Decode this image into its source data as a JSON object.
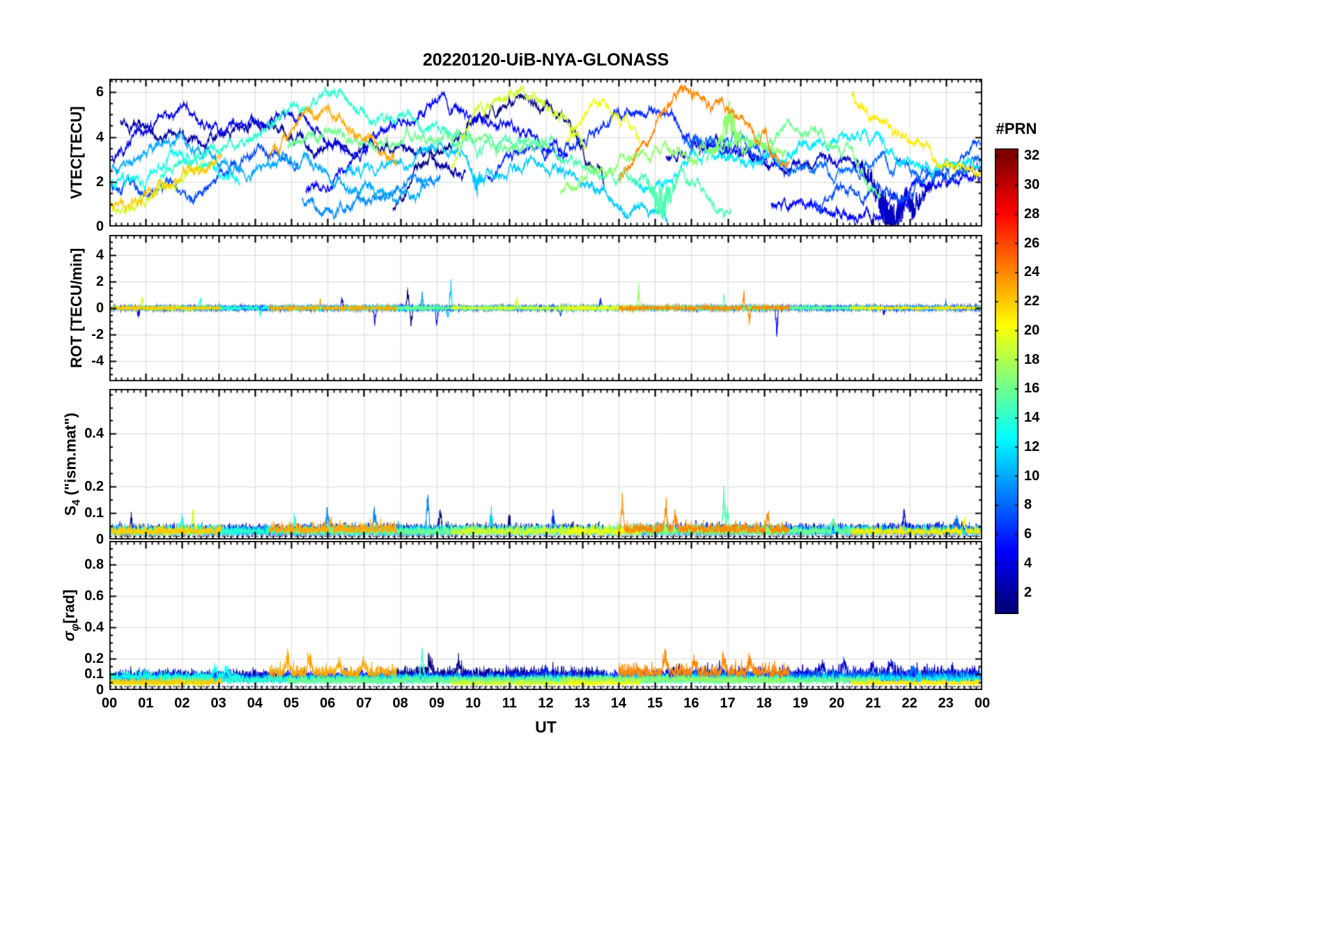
{
  "title": "20220120-UiB-NYA-GLONASS",
  "x_axis": {
    "label": "UT",
    "lim": [
      0,
      24
    ],
    "ticks": [
      "00",
      "01",
      "02",
      "03",
      "04",
      "05",
      "06",
      "07",
      "08",
      "09",
      "10",
      "11",
      "12",
      "13",
      "14",
      "15",
      "16",
      "17",
      "18",
      "19",
      "20",
      "21",
      "22",
      "23",
      "00"
    ]
  },
  "colorbar": {
    "title": "#PRN",
    "colormap": "jet",
    "lim": [
      1,
      32
    ],
    "ticks": [
      2,
      4,
      6,
      8,
      10,
      12,
      14,
      16,
      18,
      20,
      22,
      24,
      26,
      28,
      30,
      32
    ]
  },
  "chart_data": {
    "type": "line",
    "panels": [
      {
        "id": "vtec",
        "ylabel": [
          {
            "t": "VTEC[TECU]"
          }
        ],
        "ylim": [
          0,
          6.6
        ],
        "yticks": [
          0,
          2,
          4,
          6
        ],
        "minor": 0.5,
        "grid": true
      },
      {
        "id": "rot",
        "ylabel": [
          {
            "t": "ROT [TECU/min]"
          }
        ],
        "ylim": [
          -5.5,
          5.5
        ],
        "yticks": [
          -4,
          -2,
          0,
          2,
          4
        ],
        "minor": 0.5,
        "grid": true
      },
      {
        "id": "s4",
        "ylabel": [
          {
            "t": "S"
          },
          {
            "t": "4",
            "sub": true
          },
          {
            "t": " (\"ism.mat\")"
          }
        ],
        "ylim": [
          0,
          0.57
        ],
        "yticks": [
          0,
          0.1,
          0.2,
          0.4
        ],
        "minor": 0.05,
        "grid": true,
        "baseline": 0.012
      },
      {
        "id": "sigma",
        "ylabel": [
          {
            "t": "σ",
            "italic": true
          },
          {
            "t": "φ",
            "sub": true,
            "italic": true
          },
          {
            "t": "[rad]"
          }
        ],
        "ylim": [
          0,
          0.95
        ],
        "yticks": [
          0,
          0.1,
          0.2,
          0.4,
          0.6,
          0.8
        ],
        "minor": 0.05,
        "grid": true,
        "baseline": 0.022
      }
    ],
    "passes": [
      {
        "prn": 2,
        "t0": 0.3,
        "t1": 9.8,
        "vtec": [
          4.6,
          4.0,
          2.8
        ],
        "rot": 0.1,
        "s4": 0.03,
        "sg": 0.08
      },
      {
        "prn": 1,
        "t0": 7.8,
        "t1": 13.6,
        "vtec": [
          0.6,
          5.6,
          2.2
        ],
        "rot": 0.11,
        "s4": 0.032,
        "sg": 0.095
      },
      {
        "prn": 3,
        "t0": 15.3,
        "t1": 23.95,
        "vtec": [
          3.2,
          2.8,
          2.4
        ],
        "rot": 0.1,
        "s4": 0.032,
        "sg": 0.095
      },
      {
        "prn": 4,
        "t0": 0.05,
        "t1": 6.6,
        "vtec": [
          3.4,
          5.0,
          3.6
        ],
        "rot": 0.1,
        "s4": 0.03,
        "sg": 0.075
      },
      {
        "prn": 5,
        "t0": 5.4,
        "t1": 12.6,
        "vtec": [
          1.4,
          5.0,
          3.0
        ],
        "rot": 0.1,
        "s4": 0.03,
        "sg": 0.075
      },
      {
        "prn": 5,
        "t0": 18.2,
        "t1": 23.95,
        "vtec": [
          0.6,
          1.2,
          2.8
        ],
        "rot": 0.1,
        "s4": 0.03,
        "sg": 0.075
      },
      {
        "prn": 6,
        "t0": 10.4,
        "t1": 18.1,
        "vtec": [
          2.2,
          4.6,
          2.6
        ],
        "rot": 0.1,
        "s4": 0.03,
        "sg": 0.08
      },
      {
        "prn": 7,
        "t0": 0.05,
        "t1": 5.2,
        "vtec": [
          1.4,
          2.2,
          3.3
        ],
        "rot": 0.09,
        "s4": 0.028,
        "sg": 0.07
      },
      {
        "prn": 7,
        "t0": 19.4,
        "t1": 23.95,
        "vtec": [
          1.0,
          1.6,
          3.9
        ],
        "rot": 0.09,
        "s4": 0.028,
        "sg": 0.07
      },
      {
        "prn": 8,
        "t0": 15.8,
        "t1": 23.95,
        "vtec": [
          3.9,
          2.6,
          3.3
        ],
        "rot": 0.1,
        "s4": 0.03,
        "sg": 0.08
      },
      {
        "prn": 9,
        "t0": 5.3,
        "t1": 9.1,
        "vtec": [
          0.9,
          1.3,
          2.2
        ],
        "rot": 0.09,
        "s4": 0.03,
        "sg": 0.07
      },
      {
        "prn": 10,
        "t0": 0.05,
        "t1": 8.8,
        "vtec": [
          2.6,
          2.9,
          1.2
        ],
        "rot": 0.09,
        "s4": 0.028,
        "sg": 0.065
      },
      {
        "prn": 11,
        "t0": 6.5,
        "t1": 15.35,
        "vtec": [
          2.3,
          3.1,
          0.3
        ],
        "rot": 0.09,
        "s4": 0.028,
        "sg": 0.065
      },
      {
        "prn": 12,
        "t0": 14.4,
        "t1": 23.95,
        "vtec": [
          2.4,
          3.4,
          2.6
        ],
        "rot": 0.09,
        "s4": 0.028,
        "sg": 0.065
      },
      {
        "prn": 13,
        "t0": 0.05,
        "t1": 3.6,
        "vtec": [
          2.1,
          2.8,
          2.4
        ],
        "rot": 0.09,
        "s4": 0.028,
        "sg": 0.075
      },
      {
        "prn": 14,
        "t0": 1.4,
        "t1": 9.6,
        "vtec": [
          1.8,
          5.4,
          3.6
        ],
        "rot": 0.1,
        "s4": 0.028,
        "sg": 0.06
      },
      {
        "prn": 15,
        "t0": 9.4,
        "t1": 17.1,
        "vtec": [
          3.9,
          3.0,
          0.5
        ],
        "rot": 0.1,
        "s4": 0.03,
        "sg": 0.06
      },
      {
        "prn": 16,
        "t0": 4.9,
        "t1": 12.1,
        "vtec": [
          3.3,
          4.2,
          3.7
        ],
        "rot": 0.1,
        "s4": 0.028,
        "sg": 0.055
      },
      {
        "prn": 16,
        "t0": 16.4,
        "t1": 21.2,
        "vtec": [
          2.6,
          4.5,
          2.2
        ],
        "rot": 0.1,
        "s4": 0.028,
        "sg": 0.055
      },
      {
        "prn": 17,
        "t0": 12.4,
        "t1": 18.6,
        "vtec": [
          2.0,
          3.2,
          3.0
        ],
        "rot": 0.11,
        "s4": 0.03,
        "sg": 0.06
      },
      {
        "prn": 19,
        "t0": 9.4,
        "t1": 13.1,
        "vtec": [
          2.6,
          6.1,
          3.4
        ],
        "rot": 0.1,
        "s4": 0.027,
        "sg": 0.04
      },
      {
        "prn": 19,
        "t0": 0.05,
        "t1": 2.6,
        "vtec": [
          1.1,
          1.5,
          2.4
        ],
        "rot": 0.1,
        "s4": 0.027,
        "sg": 0.04
      },
      {
        "prn": 20,
        "t0": 12.6,
        "t1": 14.6,
        "vtec": [
          3.4,
          5.3,
          3.8
        ],
        "rot": 0.1,
        "s4": 0.027,
        "sg": 0.04
      },
      {
        "prn": 21,
        "t0": 20.4,
        "t1": 23.95,
        "vtec": [
          6.4,
          3.4,
          2.3
        ],
        "rot": 0.1,
        "s4": 0.027,
        "sg": 0.042
      },
      {
        "prn": 22,
        "t0": 0.05,
        "t1": 3.1,
        "vtec": [
          1.0,
          1.8,
          3.2
        ],
        "rot": 0.1,
        "s4": 0.028,
        "sg": 0.045
      },
      {
        "prn": 23,
        "t0": 4.4,
        "t1": 7.9,
        "vtec": [
          3.4,
          4.8,
          3.3
        ],
        "rot": 0.13,
        "s4": 0.035,
        "sg": 0.105
      },
      {
        "prn": 24,
        "t0": 14.0,
        "t1": 18.7,
        "vtec": [
          2.4,
          6.0,
          2.9
        ],
        "rot": 0.13,
        "s4": 0.035,
        "sg": 0.105
      }
    ],
    "events": {
      "vtec": [
        {
          "prn": 3,
          "t": 21.5,
          "a": -2.4,
          "w": 1.2
        },
        {
          "prn": 15,
          "t": 15.2,
          "a": -2.2,
          "w": 0.5
        },
        {
          "prn": 17,
          "t": 17.05,
          "a": 2.0,
          "w": 0.45
        },
        {
          "prn": 11,
          "t": 10.1,
          "a": -1.2,
          "w": 0.3
        }
      ],
      "rot": [
        {
          "prn": 19,
          "t": 0.9,
          "a": 1.0
        },
        {
          "prn": 4,
          "t": 0.8,
          "a": -0.9
        },
        {
          "prn": 13,
          "t": 2.5,
          "a": 0.8
        },
        {
          "prn": 14,
          "t": 4.15,
          "a": -0.9
        },
        {
          "prn": 23,
          "t": 5.8,
          "a": 0.8
        },
        {
          "prn": 4,
          "t": 6.4,
          "a": 1.0
        },
        {
          "prn": 5,
          "t": 7.3,
          "a": -1.3
        },
        {
          "prn": 1,
          "t": 8.2,
          "a": 1.9
        },
        {
          "prn": 1,
          "t": 8.3,
          "a": -1.6
        },
        {
          "prn": 10,
          "t": 8.6,
          "a": 1.5
        },
        {
          "prn": 5,
          "t": 9.0,
          "a": -1.5
        },
        {
          "prn": 11,
          "t": 9.3,
          "a": -1.2
        },
        {
          "prn": 11,
          "t": 9.38,
          "a": 2.6
        },
        {
          "prn": 19,
          "t": 11.2,
          "a": 0.9
        },
        {
          "prn": 6,
          "t": 12.4,
          "a": -0.8
        },
        {
          "prn": 6,
          "t": 13.5,
          "a": 0.9
        },
        {
          "prn": 17,
          "t": 14.55,
          "a": 2.0
        },
        {
          "prn": 24,
          "t": 17.45,
          "a": 1.5
        },
        {
          "prn": 24,
          "t": 17.6,
          "a": -1.6
        },
        {
          "prn": 15,
          "t": 16.9,
          "a": 1.2
        },
        {
          "prn": 5,
          "t": 18.35,
          "a": -2.4
        },
        {
          "prn": 3,
          "t": 21.3,
          "a": -0.8
        },
        {
          "prn": 8,
          "t": 23.0,
          "a": 0.7
        }
      ],
      "s4": [
        {
          "prn": 2,
          "t": 0.6,
          "a": 0.06
        },
        {
          "prn": 19,
          "t": 2.3,
          "a": 0.09
        },
        {
          "prn": 13,
          "t": 2.0,
          "a": 0.07
        },
        {
          "prn": 14,
          "t": 5.1,
          "a": 0.06
        },
        {
          "prn": 9,
          "t": 6.0,
          "a": 0.09
        },
        {
          "prn": 23,
          "t": 6.1,
          "a": 0.06
        },
        {
          "prn": 9,
          "t": 7.3,
          "a": 0.1
        },
        {
          "prn": 9,
          "t": 8.75,
          "a": 0.15
        },
        {
          "prn": 1,
          "t": 9.1,
          "a": 0.08
        },
        {
          "prn": 11,
          "t": 10.5,
          "a": 0.09
        },
        {
          "prn": 1,
          "t": 11.0,
          "a": 0.06
        },
        {
          "prn": 6,
          "t": 12.2,
          "a": 0.06
        },
        {
          "prn": 24,
          "t": 14.1,
          "a": 0.14
        },
        {
          "prn": 24,
          "t": 15.3,
          "a": 0.12
        },
        {
          "prn": 24,
          "t": 15.55,
          "a": 0.1
        },
        {
          "prn": 15,
          "t": 16.9,
          "a": 0.2
        },
        {
          "prn": 15,
          "t": 17.0,
          "a": 0.08
        },
        {
          "prn": 24,
          "t": 18.1,
          "a": 0.09
        },
        {
          "prn": 16,
          "t": 19.9,
          "a": 0.06
        },
        {
          "prn": 3,
          "t": 21.85,
          "a": 0.09
        },
        {
          "prn": 8,
          "t": 23.3,
          "a": 0.08
        },
        {
          "prn": 21,
          "t": 23.5,
          "a": 0.06
        }
      ],
      "sg": [
        {
          "prn": 13,
          "t": 2.9,
          "a": 0.08
        },
        {
          "prn": 13,
          "t": 3.2,
          "a": 0.07
        },
        {
          "prn": 23,
          "t": 4.9,
          "a": 0.12
        },
        {
          "prn": 23,
          "t": 5.5,
          "a": 0.1
        },
        {
          "prn": 23,
          "t": 6.3,
          "a": 0.1
        },
        {
          "prn": 23,
          "t": 7.0,
          "a": 0.09
        },
        {
          "prn": 14,
          "t": 8.6,
          "a": 0.18
        },
        {
          "prn": 1,
          "t": 8.8,
          "a": 0.12
        },
        {
          "prn": 1,
          "t": 9.6,
          "a": 0.1
        },
        {
          "prn": 6,
          "t": 12.0,
          "a": 0.07
        },
        {
          "prn": 24,
          "t": 15.3,
          "a": 0.13
        },
        {
          "prn": 24,
          "t": 16.1,
          "a": 0.1
        },
        {
          "prn": 24,
          "t": 16.9,
          "a": 0.1
        },
        {
          "prn": 24,
          "t": 17.6,
          "a": 0.12
        },
        {
          "prn": 6,
          "t": 16.8,
          "a": 0.09
        },
        {
          "prn": 3,
          "t": 19.6,
          "a": 0.08
        },
        {
          "prn": 3,
          "t": 20.2,
          "a": 0.1
        },
        {
          "prn": 3,
          "t": 21.0,
          "a": 0.09
        },
        {
          "prn": 3,
          "t": 21.5,
          "a": 0.08
        },
        {
          "prn": 8,
          "t": 22.1,
          "a": 0.07
        }
      ]
    }
  }
}
